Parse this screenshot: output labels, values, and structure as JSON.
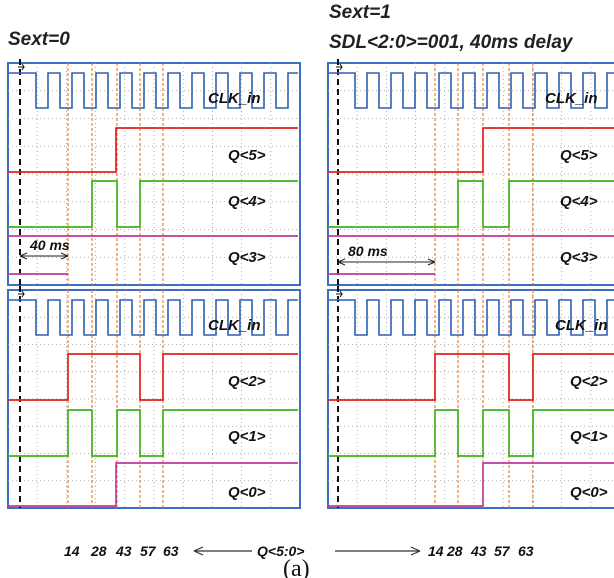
{
  "left_title": "Sext=0",
  "right_title_line1": "Sext=1",
  "right_title_line2": "SDL<2:0>=001, 40ms delay",
  "top_labels": [
    "CLK_in",
    "Q<5>",
    "Q<4>",
    "Q<3>"
  ],
  "bottom_labels": [
    "CLK_in",
    "Q<2>",
    "Q<1>",
    "Q<0>"
  ],
  "left_measure": "40 ms",
  "right_measure": "80 ms",
  "ticks": [
    "14",
    "28",
    "43",
    "57",
    "63"
  ],
  "bus_label": "Q<5:0>",
  "caption": "(a)",
  "colors": {
    "clk": "#2f5fb3",
    "q_red": "#e0201c",
    "q_green": "#3fb21b",
    "q_magenta": "#c0399b",
    "marker": "#e87722",
    "scope_border": "#3a6fc4"
  }
}
